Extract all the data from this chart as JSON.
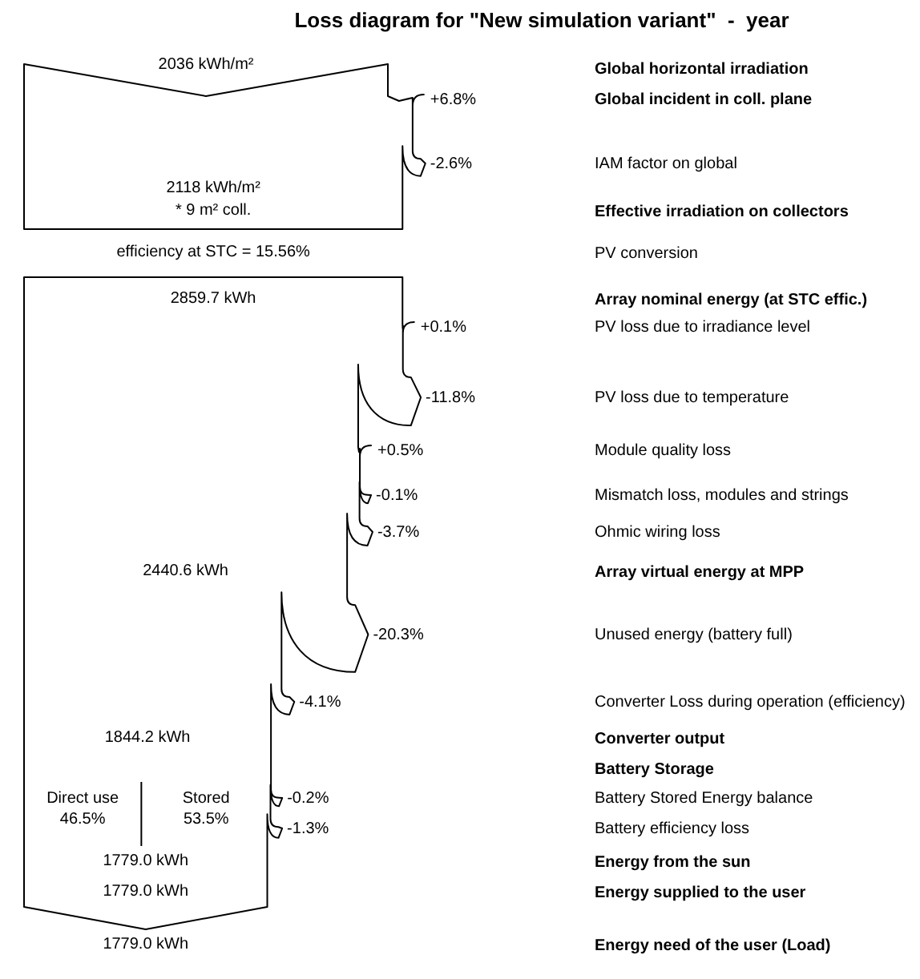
{
  "chart_data": {
    "type": "other",
    "title": "Loss diagram for \"New simulation variant\"  -  year",
    "categories": [
      "Global horizontal irradiation",
      "Global incident in coll. plane",
      "IAM factor on global",
      "Effective irradiation on collectors",
      "PV conversion",
      "Array nominal energy (at STC effic.)",
      "PV loss due to irradiance level",
      "PV loss due to temperature",
      "Module quality loss",
      "Mismatch loss, modules and strings",
      "Ohmic wiring loss",
      "Array virtual energy at MPP",
      "Unused energy (battery full)",
      "Converter Loss during operation (efficiency)",
      "Converter output",
      "Battery Storage",
      "Battery Stored Energy balance",
      "Battery efficiency loss",
      "Energy from the sun",
      "Energy supplied to the user",
      "Energy need of the user (Load)"
    ],
    "values": [
      null,
      6.8,
      -2.6,
      null,
      null,
      null,
      0.1,
      -11.8,
      0.5,
      -0.1,
      -3.7,
      null,
      -20.3,
      -4.1,
      null,
      null,
      -0.2,
      -1.3,
      null,
      null,
      null
    ],
    "value_labels": [
      null,
      "+6.8%",
      "-2.6%",
      null,
      null,
      null,
      "+0.1%",
      "-11.8%",
      "+0.5%",
      "-0.1%",
      "-3.7%",
      null,
      "-20.3%",
      "-4.1%",
      null,
      null,
      "-0.2%",
      "-1.3%",
      null,
      null,
      null
    ],
    "annotations": [
      "2036 kWh/m²",
      "2118 kWh/m²",
      "* 9 m² coll.",
      "efficiency at STC = 15.56%",
      "2859.7 kWh",
      "2440.6 kWh",
      "1844.2 kWh",
      "Direct use",
      "46.5%",
      "Stored",
      "53.5%",
      "1779.0 kWh",
      "1779.0 kWh",
      "1779.0 kWh"
    ]
  }
}
